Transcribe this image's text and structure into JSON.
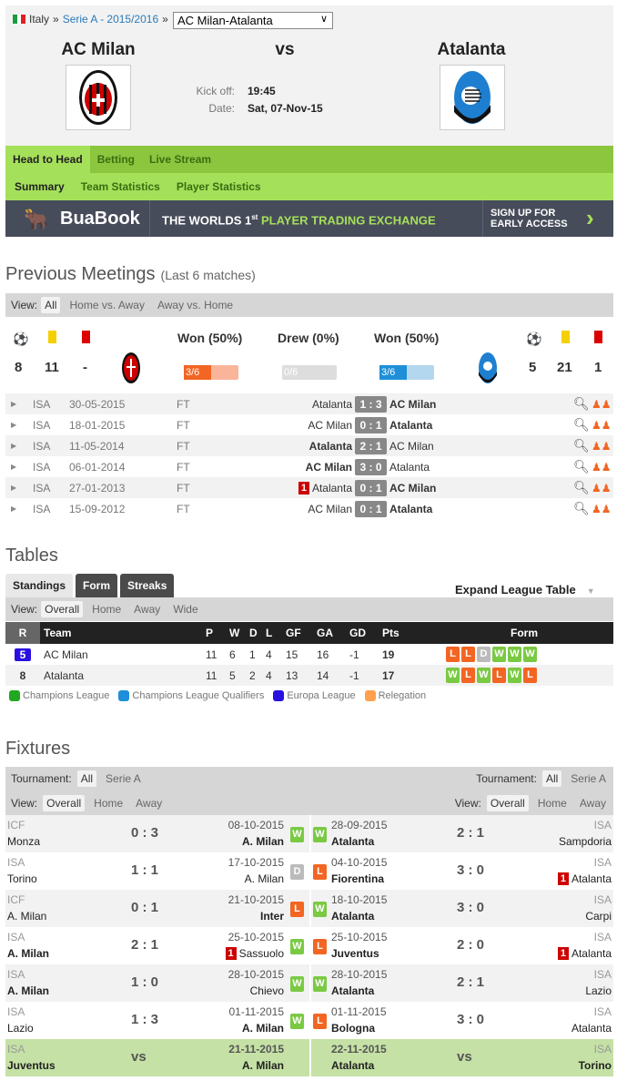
{
  "breadcrumb": {
    "country": "Italy",
    "sep": "»",
    "league": "Serie A - 2015/2016",
    "match_select": "AC Milan-Atalanta"
  },
  "match": {
    "home": "AC Milan",
    "vs": "vs",
    "away": "Atalanta",
    "kickoff_label": "Kick off:",
    "kickoff": "19:45",
    "date_label": "Date:",
    "date": "Sat, 07-Nov-15"
  },
  "nav": {
    "tabs": [
      "Head to Head",
      "Betting",
      "Live Stream"
    ],
    "subtabs": [
      "Summary",
      "Team Statistics",
      "Player Statistics"
    ]
  },
  "banner": {
    "brand": "BuaBook",
    "tag1": "THE WORLDS 1",
    "tag_sup": "st",
    "tag2": "PLAYER TRADING EXCHANGE",
    "cta1": "SIGN UP FOR",
    "cta2": "EARLY ACCESS"
  },
  "previous": {
    "title": "Previous Meetings",
    "subtitle": "(Last 6 matches)",
    "view_label": "View:",
    "views": [
      "All",
      "Home vs. Away",
      "Away vs. Home"
    ],
    "home_stats": {
      "goals": "8",
      "yellow": "11",
      "red": "-"
    },
    "away_stats": {
      "goals": "5",
      "yellow": "21",
      "red": "1"
    },
    "won_home": "Won (50%)",
    "drew": "Drew (0%)",
    "won_away": "Won (50%)",
    "home_frac": "3/6",
    "draw_frac": "0/6",
    "away_frac": "3/6",
    "matches": [
      {
        "comp": "ISA",
        "date": "30-05-2015",
        "status": "FT",
        "home": "Atalanta",
        "score": "1 : 3",
        "away": "AC Milan",
        "win": "away",
        "red": ""
      },
      {
        "comp": "ISA",
        "date": "18-01-2015",
        "status": "FT",
        "home": "AC Milan",
        "score": "0 : 1",
        "away": "Atalanta",
        "win": "away",
        "red": ""
      },
      {
        "comp": "ISA",
        "date": "11-05-2014",
        "status": "FT",
        "home": "Atalanta",
        "score": "2 : 1",
        "away": "AC Milan",
        "win": "home",
        "red": ""
      },
      {
        "comp": "ISA",
        "date": "06-01-2014",
        "status": "FT",
        "home": "AC Milan",
        "score": "3 : 0",
        "away": "Atalanta",
        "win": "home",
        "red": ""
      },
      {
        "comp": "ISA",
        "date": "27-01-2013",
        "status": "FT",
        "home": "Atalanta",
        "score": "0 : 1",
        "away": "AC Milan",
        "win": "away",
        "red": "1"
      },
      {
        "comp": "ISA",
        "date": "15-09-2012",
        "status": "FT",
        "home": "AC Milan",
        "score": "0 : 1",
        "away": "Atalanta",
        "win": "away",
        "red": ""
      }
    ]
  },
  "tables": {
    "title": "Tables",
    "tabs": [
      "Standings",
      "Form",
      "Streaks"
    ],
    "expand": "Expand League Table",
    "view_label": "View:",
    "views": [
      "Overall",
      "Home",
      "Away",
      "Wide"
    ],
    "headers": [
      "R",
      "Team",
      "P",
      "W",
      "D",
      "L",
      "GF",
      "GA",
      "GD",
      "Pts",
      "Form"
    ],
    "rows": [
      {
        "r": "5",
        "team": "AC Milan",
        "p": "11",
        "w": "6",
        "d": "1",
        "l": "4",
        "gf": "15",
        "ga": "16",
        "gd": "-1",
        "pts": "19",
        "form": [
          "L",
          "L",
          "D",
          "W",
          "W",
          "W"
        ]
      },
      {
        "r": "8",
        "team": "Atalanta",
        "p": "11",
        "w": "5",
        "d": "2",
        "l": "4",
        "gf": "13",
        "ga": "14",
        "gd": "-1",
        "pts": "17",
        "form": [
          "W",
          "L",
          "W",
          "L",
          "W",
          "L"
        ]
      }
    ],
    "legend": [
      {
        "label": "Champions League",
        "color": "#22a722"
      },
      {
        "label": "Champions League Qualifiers",
        "color": "#1e8fd8"
      },
      {
        "label": "Europa League",
        "color": "#2a10e0"
      },
      {
        "label": "Relegation",
        "color": "#ffa04d"
      }
    ],
    "europa_color": "#2a10e0"
  },
  "fixtures": {
    "title": "Fixtures",
    "tournament_label": "Tournament:",
    "tournaments": [
      "All",
      "Serie A"
    ],
    "view_label": "View:",
    "views": [
      "Overall",
      "Home",
      "Away"
    ],
    "left": [
      {
        "comp": "ICF",
        "home": "Monza",
        "score": "0 : 3",
        "date": "08-10-2015",
        "away": "A. Milan",
        "res": "W",
        "bold": "away",
        "red": ""
      },
      {
        "comp": "ISA",
        "home": "Torino",
        "score": "1 : 1",
        "date": "17-10-2015",
        "away": "A. Milan",
        "res": "D",
        "bold": "",
        "red": ""
      },
      {
        "comp": "ICF",
        "home": "A. Milan",
        "score": "0 : 1",
        "date": "21-10-2015",
        "away": "Inter",
        "res": "L",
        "bold": "away",
        "red": ""
      },
      {
        "comp": "ISA",
        "home": "A. Milan",
        "score": "2 : 1",
        "date": "25-10-2015",
        "away": "Sassuolo",
        "res": "W",
        "bold": "home",
        "red": "1"
      },
      {
        "comp": "ISA",
        "home": "A. Milan",
        "score": "1 : 0",
        "date": "28-10-2015",
        "away": "Chievo",
        "res": "W",
        "bold": "home",
        "red": ""
      },
      {
        "comp": "ISA",
        "home": "Lazio",
        "score": "1 : 3",
        "date": "01-11-2015",
        "away": "A. Milan",
        "res": "W",
        "bold": "away",
        "red": ""
      },
      {
        "comp": "ISA",
        "home": "Juventus",
        "score": "vs",
        "date": "21-11-2015",
        "away": "A. Milan",
        "res": "",
        "bold": "both",
        "red": "",
        "upcoming": true
      }
    ],
    "right": [
      {
        "comp": "ISA",
        "home": "Atalanta",
        "score": "2 : 1",
        "date": "28-09-2015",
        "away": "Sampdoria",
        "res": "W",
        "bold": "home",
        "red": ""
      },
      {
        "comp": "ISA",
        "home": "Fiorentina",
        "score": "3 : 0",
        "date": "04-10-2015",
        "away": "Atalanta",
        "res": "L",
        "bold": "home",
        "red": "1"
      },
      {
        "comp": "ISA",
        "home": "Atalanta",
        "score": "3 : 0",
        "date": "18-10-2015",
        "away": "Carpi",
        "res": "W",
        "bold": "home",
        "red": ""
      },
      {
        "comp": "ISA",
        "home": "Juventus",
        "score": "2 : 0",
        "date": "25-10-2015",
        "away": "Atalanta",
        "res": "L",
        "bold": "home",
        "red": "1"
      },
      {
        "comp": "ISA",
        "home": "Atalanta",
        "score": "2 : 1",
        "date": "28-10-2015",
        "away": "Lazio",
        "res": "W",
        "bold": "home",
        "red": ""
      },
      {
        "comp": "ISA",
        "home": "Bologna",
        "score": "3 : 0",
        "date": "01-11-2015",
        "away": "Atalanta",
        "res": "L",
        "bold": "home",
        "red": ""
      },
      {
        "comp": "ISA",
        "home": "Atalanta",
        "score": "vs",
        "date": "22-11-2015",
        "away": "Torino",
        "res": "",
        "bold": "both",
        "red": "",
        "upcoming": true
      }
    ]
  },
  "colors": {
    "green_nav": "#8cc63f",
    "green_sub": "#a5e05a",
    "banner": "#474c5a",
    "win": "#7ac943",
    "loss": "#f26522",
    "draw": "#bbbbbb",
    "upcoming": "#c5e1a5",
    "home_bar": "#f26522",
    "away_bar": "#1e8fd8"
  }
}
